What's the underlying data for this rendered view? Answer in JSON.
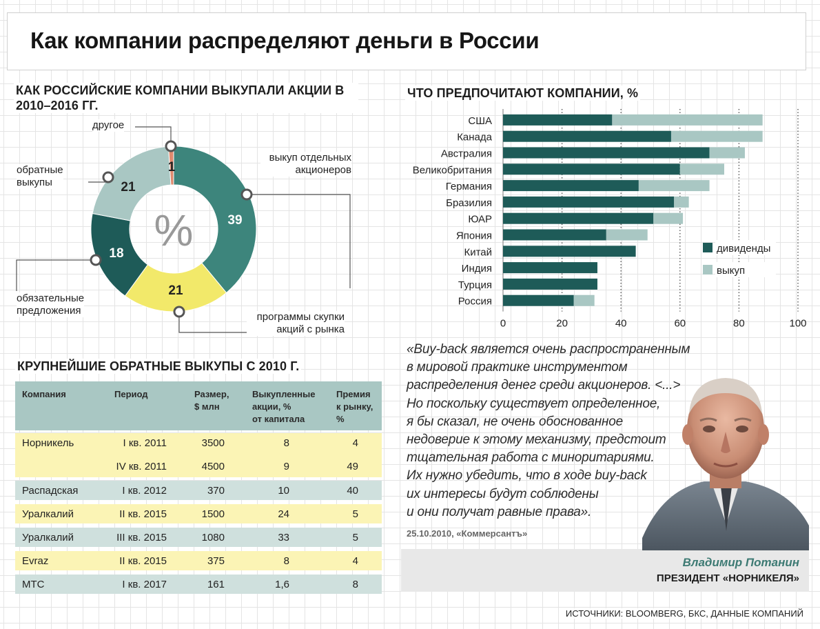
{
  "main_title": "Как компании распределяют деньги в России",
  "colors": {
    "teal_dark": "#1e5b58",
    "teal_mid": "#3d857c",
    "grey_teal": "#a9c7c3",
    "yellow": "#f2e96a",
    "salmon": "#e08a6e",
    "table_header": "#a9c7c3",
    "row_yellow": "#fbf4b5",
    "row_teal": "#cfe0dd",
    "name_color": "#3d7a73"
  },
  "chart_data": [
    {
      "type": "pie",
      "title": "КАК РОССИЙСКИЕ КОМПАНИИ ВЫКУПАЛИ АКЦИИ В 2010–2016 ГГ.",
      "center_label": "%",
      "slices": [
        {
          "label": "выкуп отдельных акционеров",
          "value": 39,
          "color": "#3d857c"
        },
        {
          "label": "программы скупки акций с рынка",
          "value": 21,
          "color": "#f2e96a"
        },
        {
          "label": "обязательные предложения",
          "value": 18,
          "color": "#1e5b58"
        },
        {
          "label": "обратные выкупы",
          "value": 21,
          "color": "#a9c7c3"
        },
        {
          "label": "другое",
          "value": 1,
          "color": "#e08a6e"
        }
      ]
    },
    {
      "type": "bar",
      "orientation": "horizontal",
      "stacked": true,
      "title": "ЧТО ПРЕДПОЧИТАЮТ КОМПАНИИ, %",
      "categories": [
        "США",
        "Канада",
        "Австралия",
        "Великобритания",
        "Германия",
        "Бразилия",
        "ЮАР",
        "Япония",
        "Китай",
        "Индия",
        "Турция",
        "Россия"
      ],
      "series": [
        {
          "name": "дивиденды",
          "color": "#1e5b58",
          "values": [
            37,
            57,
            70,
            60,
            46,
            58,
            51,
            35,
            45,
            32,
            32,
            24
          ]
        },
        {
          "name": "выкуп",
          "color": "#a9c7c3",
          "values": [
            51,
            31,
            12,
            15,
            24,
            5,
            10,
            14,
            0,
            0,
            0,
            7
          ]
        }
      ],
      "xlim": [
        0,
        100
      ],
      "xticks": [
        0,
        20,
        40,
        60,
        80,
        100
      ],
      "legend": "right"
    }
  ],
  "donut_labels": {
    "drugoe": "другое",
    "vykup_otd": [
      "выкуп отдельных",
      "акционеров"
    ],
    "obratnye": [
      "обратные",
      "выкупы"
    ],
    "obyazat": [
      "обязательные",
      "предложения"
    ],
    "programmy": [
      "программы скупки",
      "акций с рынка"
    ]
  },
  "table": {
    "title": "КРУПНЕЙШИЕ ОБРАТНЫЕ ВЫКУПЫ С 2010 Г.",
    "headers": {
      "company": "Компания",
      "period": "Период",
      "size": [
        "Размер,",
        "$ млн"
      ],
      "bought": [
        "Выкупленные",
        "акции, %",
        "от капитала"
      ],
      "premium": [
        "Премия",
        "к рынку,",
        "%"
      ]
    },
    "rows": [
      {
        "company": "Норникель",
        "period": "I кв. 2011",
        "size": "3500",
        "bought": "8",
        "premium": "4"
      },
      {
        "company": "",
        "period": "IV кв. 2011",
        "size": "4500",
        "bought": "9",
        "premium": "49"
      },
      {
        "company": "Распадская",
        "period": "I кв. 2012",
        "size": "370",
        "bought": "10",
        "premium": "40"
      },
      {
        "company": "Уралкалий",
        "period": "II кв. 2015",
        "size": "1500",
        "bought": "24",
        "premium": "5"
      },
      {
        "company": "Уралкалий",
        "period": "III кв. 2015",
        "size": "1080",
        "bought": "33",
        "premium": "5"
      },
      {
        "company": "Evraz",
        "period": "II кв. 2015",
        "size": "375",
        "bought": "8",
        "premium": "4"
      },
      {
        "company": "МТС",
        "period": "I кв. 2017",
        "size": "161",
        "bought": "1,6",
        "premium": "8"
      }
    ]
  },
  "quote": {
    "lines": [
      "«Buy-back является очень распространенным",
      "в мировой практике инструментом",
      "распределения денег среди акционеров. <...>",
      "Но поскольку существует определенное,",
      "я бы сказал, не очень обоснованное",
      "недоверие к этому механизму, предстоит",
      "тщательная работа с миноритариями.",
      "Их нужно убедить, что в ходе buy-back",
      "их интересы будут соблюдены",
      "и они получат равные права»."
    ],
    "date": "25.10.2010, «Коммерсантъ»",
    "person_name": "Владимир Потанин",
    "person_title": "ПРЕЗИДЕНТ «НОРНИКЕЛЯ»"
  },
  "sources": "ИСТОЧНИКИ: BLOOMBERG, БКС, ДАННЫЕ КОМПАНИЙ"
}
